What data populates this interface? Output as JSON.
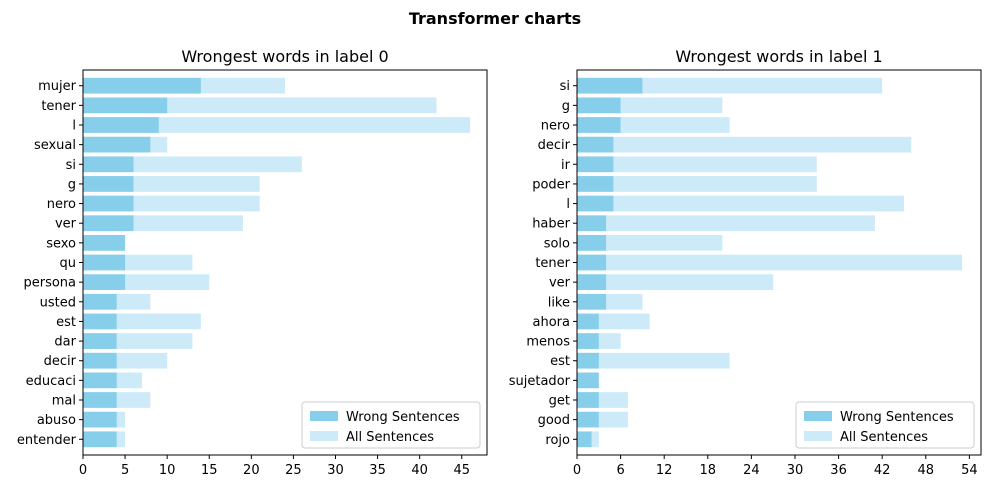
{
  "figure": {
    "suptitle": "Transformer charts"
  },
  "colors": {
    "wrong": "#87CEEB",
    "all": "#CCEAF7",
    "axis": "#000000",
    "legend_edge": "#cccccc"
  },
  "chart_data": [
    {
      "type": "bar",
      "orientation": "horizontal",
      "title": "Wrongest words in label 0",
      "xlabel": "",
      "ylabel": "",
      "xlim": [
        0,
        48
      ],
      "xticks": [
        0,
        5,
        10,
        15,
        20,
        25,
        30,
        35,
        40,
        45
      ],
      "grid": false,
      "legend_position": "lower-right",
      "categories": [
        "mujer",
        "tener",
        "l",
        "sexual",
        "si",
        "g",
        "nero",
        "ver",
        "sexo",
        "qu",
        "persona",
        "usted",
        "est",
        "dar",
        "decir",
        "educaci",
        "mal",
        "abuso",
        "entender"
      ],
      "series": [
        {
          "name": "All Sentences",
          "values": [
            24,
            42,
            46,
            10,
            26,
            21,
            21,
            19,
            5,
            13,
            15,
            8,
            14,
            13,
            10,
            7,
            8,
            5,
            5
          ]
        },
        {
          "name": "Wrong Sentences",
          "values": [
            14,
            10,
            9,
            8,
            6,
            6,
            6,
            6,
            5,
            5,
            5,
            4,
            4,
            4,
            4,
            4,
            4,
            4,
            4
          ]
        }
      ]
    },
    {
      "type": "bar",
      "orientation": "horizontal",
      "title": "Wrongest words in label 1",
      "xlabel": "",
      "ylabel": "",
      "xlim": [
        0,
        55.6
      ],
      "xticks": [
        0,
        6,
        12,
        18,
        24,
        30,
        36,
        42,
        48,
        54
      ],
      "grid": false,
      "legend_position": "lower-right",
      "categories": [
        "si",
        "g",
        "nero",
        "decir",
        "ir",
        "poder",
        "l",
        "haber",
        "solo",
        "tener",
        "ver",
        "like",
        "ahora",
        "menos",
        "est",
        "sujetador",
        "get",
        "good",
        "rojo"
      ],
      "series": [
        {
          "name": "All Sentences",
          "values": [
            42,
            20,
            21,
            46,
            33,
            33,
            45,
            41,
            20,
            53,
            27,
            9,
            10,
            6,
            21,
            3,
            7,
            7,
            3
          ]
        },
        {
          "name": "Wrong Sentences",
          "values": [
            9,
            6,
            6,
            5,
            5,
            5,
            5,
            4,
            4,
            4,
            4,
            4,
            3,
            3,
            3,
            3,
            3,
            3,
            2
          ]
        }
      ]
    }
  ]
}
